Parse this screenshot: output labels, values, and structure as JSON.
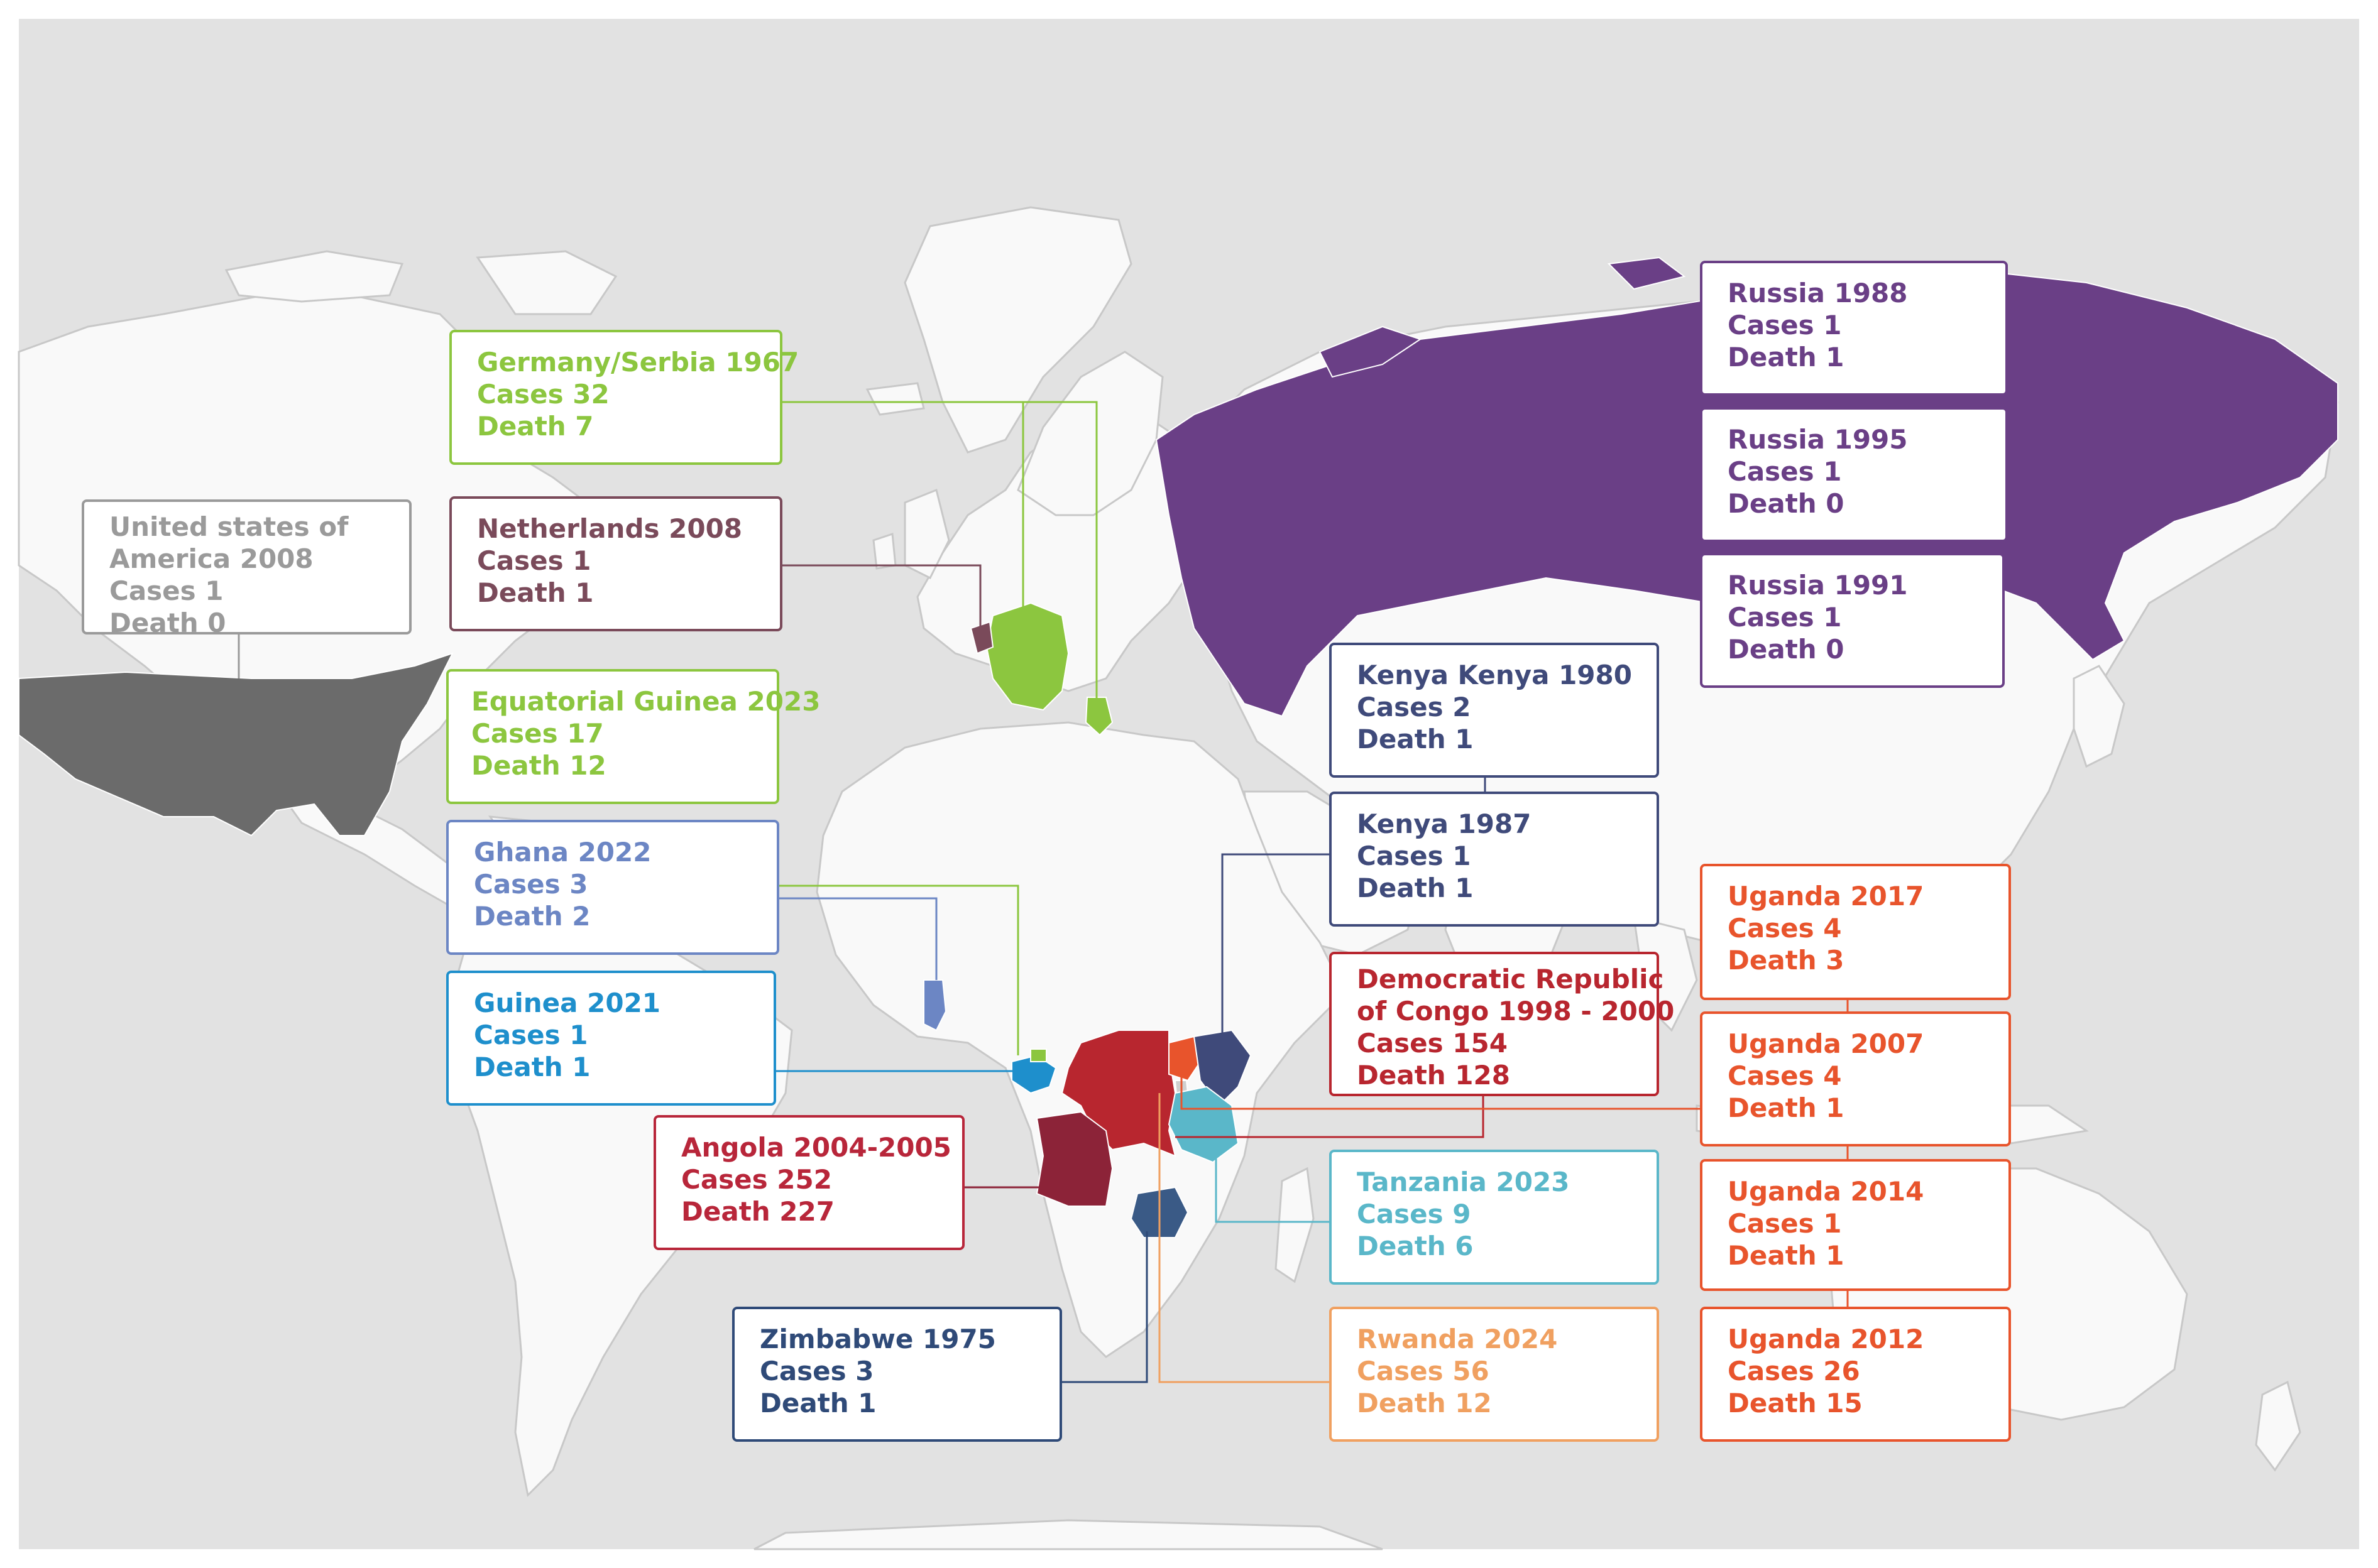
{
  "palette": {
    "ocean": "#e2e2e2",
    "land": "#f9f9f9",
    "usa": "#6b6b6b",
    "russia": "#6a3f86",
    "german_green": "#8cc63f",
    "netherlands": "#7a4a5a",
    "kenya_navy": "#3f4a7a",
    "ghana_blue": "#6c86c4",
    "guinea_blue": "#1e8fcc",
    "angola": "#8c2338",
    "drc": "#b8262f",
    "uganda": "#e8542c",
    "tanzania": "#5ab7c9",
    "rwanda": "#f0a060",
    "zimbabwe": "#3a5a86"
  },
  "outbreaks": [
    {
      "id": "usa-2008",
      "title": "United states of America 2008",
      "title_lines": [
        "United states of",
        "America 2008"
      ],
      "cases": "Cases 1",
      "deaths": "Death 0",
      "color": "#9a9a9a",
      "country_icon": "usa-shape"
    },
    {
      "id": "germany-serbia-1967",
      "title": "Germany/Serbia 1967",
      "title_lines": [
        "Germany/Serbia 1967"
      ],
      "cases": "Cases 32",
      "deaths": "Death 7",
      "color": "#8cc63f"
    },
    {
      "id": "netherlands-2008",
      "title": "Netherlands 2008",
      "title_lines": [
        "Netherlands 2008"
      ],
      "cases": "Cases 1",
      "deaths": "Death 1",
      "color": "#7a4a5a"
    },
    {
      "id": "equatorial-guinea-2023",
      "title": "Equatorial Guinea 2023",
      "title_lines": [
        "Equatorial Guinea 2023"
      ],
      "cases": "Cases 17",
      "deaths": "Death 12",
      "color": "#8cc63f"
    },
    {
      "id": "ghana-2022",
      "title": "Ghana 2022",
      "title_lines": [
        "Ghana 2022"
      ],
      "cases": "Cases 3",
      "deaths": "Death 2",
      "color": "#6c86c4"
    },
    {
      "id": "guinea-2021",
      "title": "Guinea 2021",
      "title_lines": [
        "Guinea 2021"
      ],
      "cases": "Cases 1",
      "deaths": "Death 1",
      "color": "#1e8fcc"
    },
    {
      "id": "angola-2004",
      "title": "Angola 2004-2005",
      "title_lines": [
        "Angola 2004-2005"
      ],
      "cases": "Cases 252",
      "deaths": "Death 227",
      "color": "#b8263a"
    },
    {
      "id": "zimbabwe-1975",
      "title": "Zimbabwe 1975",
      "title_lines": [
        "Zimbabwe 1975"
      ],
      "cases": "Cases 3",
      "deaths": "Death 1",
      "color": "#2f4a78"
    },
    {
      "id": "russia-1988",
      "title": "Russia 1988",
      "title_lines": [
        "Russia 1988"
      ],
      "cases": "Cases 1",
      "deaths": "Death 1",
      "color": "#6a3f86"
    },
    {
      "id": "russia-1995",
      "title": "Russia 1995",
      "title_lines": [
        "Russia 1995"
      ],
      "cases": "Cases 1",
      "deaths": "Death 0",
      "color": "#6a3f86"
    },
    {
      "id": "russia-1991",
      "title": "Russia 1991",
      "title_lines": [
        "Russia 1991"
      ],
      "cases": "Cases 1",
      "deaths": "Death 0",
      "color": "#6a3f86"
    },
    {
      "id": "kenya-1980",
      "title": "Kenya Kenya 1980",
      "title_lines": [
        "Kenya Kenya 1980"
      ],
      "cases": "Cases 2",
      "deaths": "Death 1",
      "color": "#3f4a7a"
    },
    {
      "id": "kenya-1987",
      "title": "Kenya 1987",
      "title_lines": [
        "Kenya 1987"
      ],
      "cases": "Cases 1",
      "deaths": "Death 1",
      "color": "#3f4a7a"
    },
    {
      "id": "drc-1998",
      "title": "Democratic Republic of Congo 1998 - 2000",
      "title_lines": [
        "Democratic Republic",
        "of Congo 1998 - 2000"
      ],
      "cases": "Cases 154",
      "deaths": "Death 128",
      "color": "#b8262f"
    },
    {
      "id": "tanzania-2023",
      "title": "Tanzania 2023",
      "title_lines": [
        "Tanzania 2023"
      ],
      "cases": "Cases 9",
      "deaths": "Death 6",
      "color": "#5ab7c9"
    },
    {
      "id": "rwanda-2024",
      "title": "Rwanda 2024",
      "title_lines": [
        "Rwanda 2024"
      ],
      "cases": "Cases 56",
      "deaths": "Death 12",
      "color": "#f0a060"
    },
    {
      "id": "uganda-2017",
      "title": "Uganda 2017",
      "title_lines": [
        "Uganda 2017"
      ],
      "cases": "Cases 4",
      "deaths": "Death 3",
      "color": "#e8542c"
    },
    {
      "id": "uganda-2007",
      "title": "Uganda 2007",
      "title_lines": [
        "Uganda 2007"
      ],
      "cases": "Cases 4",
      "deaths": "Death 1",
      "color": "#e8542c"
    },
    {
      "id": "uganda-2014",
      "title": "Uganda 2014",
      "title_lines": [
        "Uganda 2014"
      ],
      "cases": "Cases 1",
      "deaths": "Death 1",
      "color": "#e8542c"
    },
    {
      "id": "uganda-2012",
      "title": "Uganda 2012",
      "title_lines": [
        "Uganda 2012"
      ],
      "cases": "Cases 26",
      "deaths": "Death 15",
      "color": "#e8542c"
    }
  ]
}
